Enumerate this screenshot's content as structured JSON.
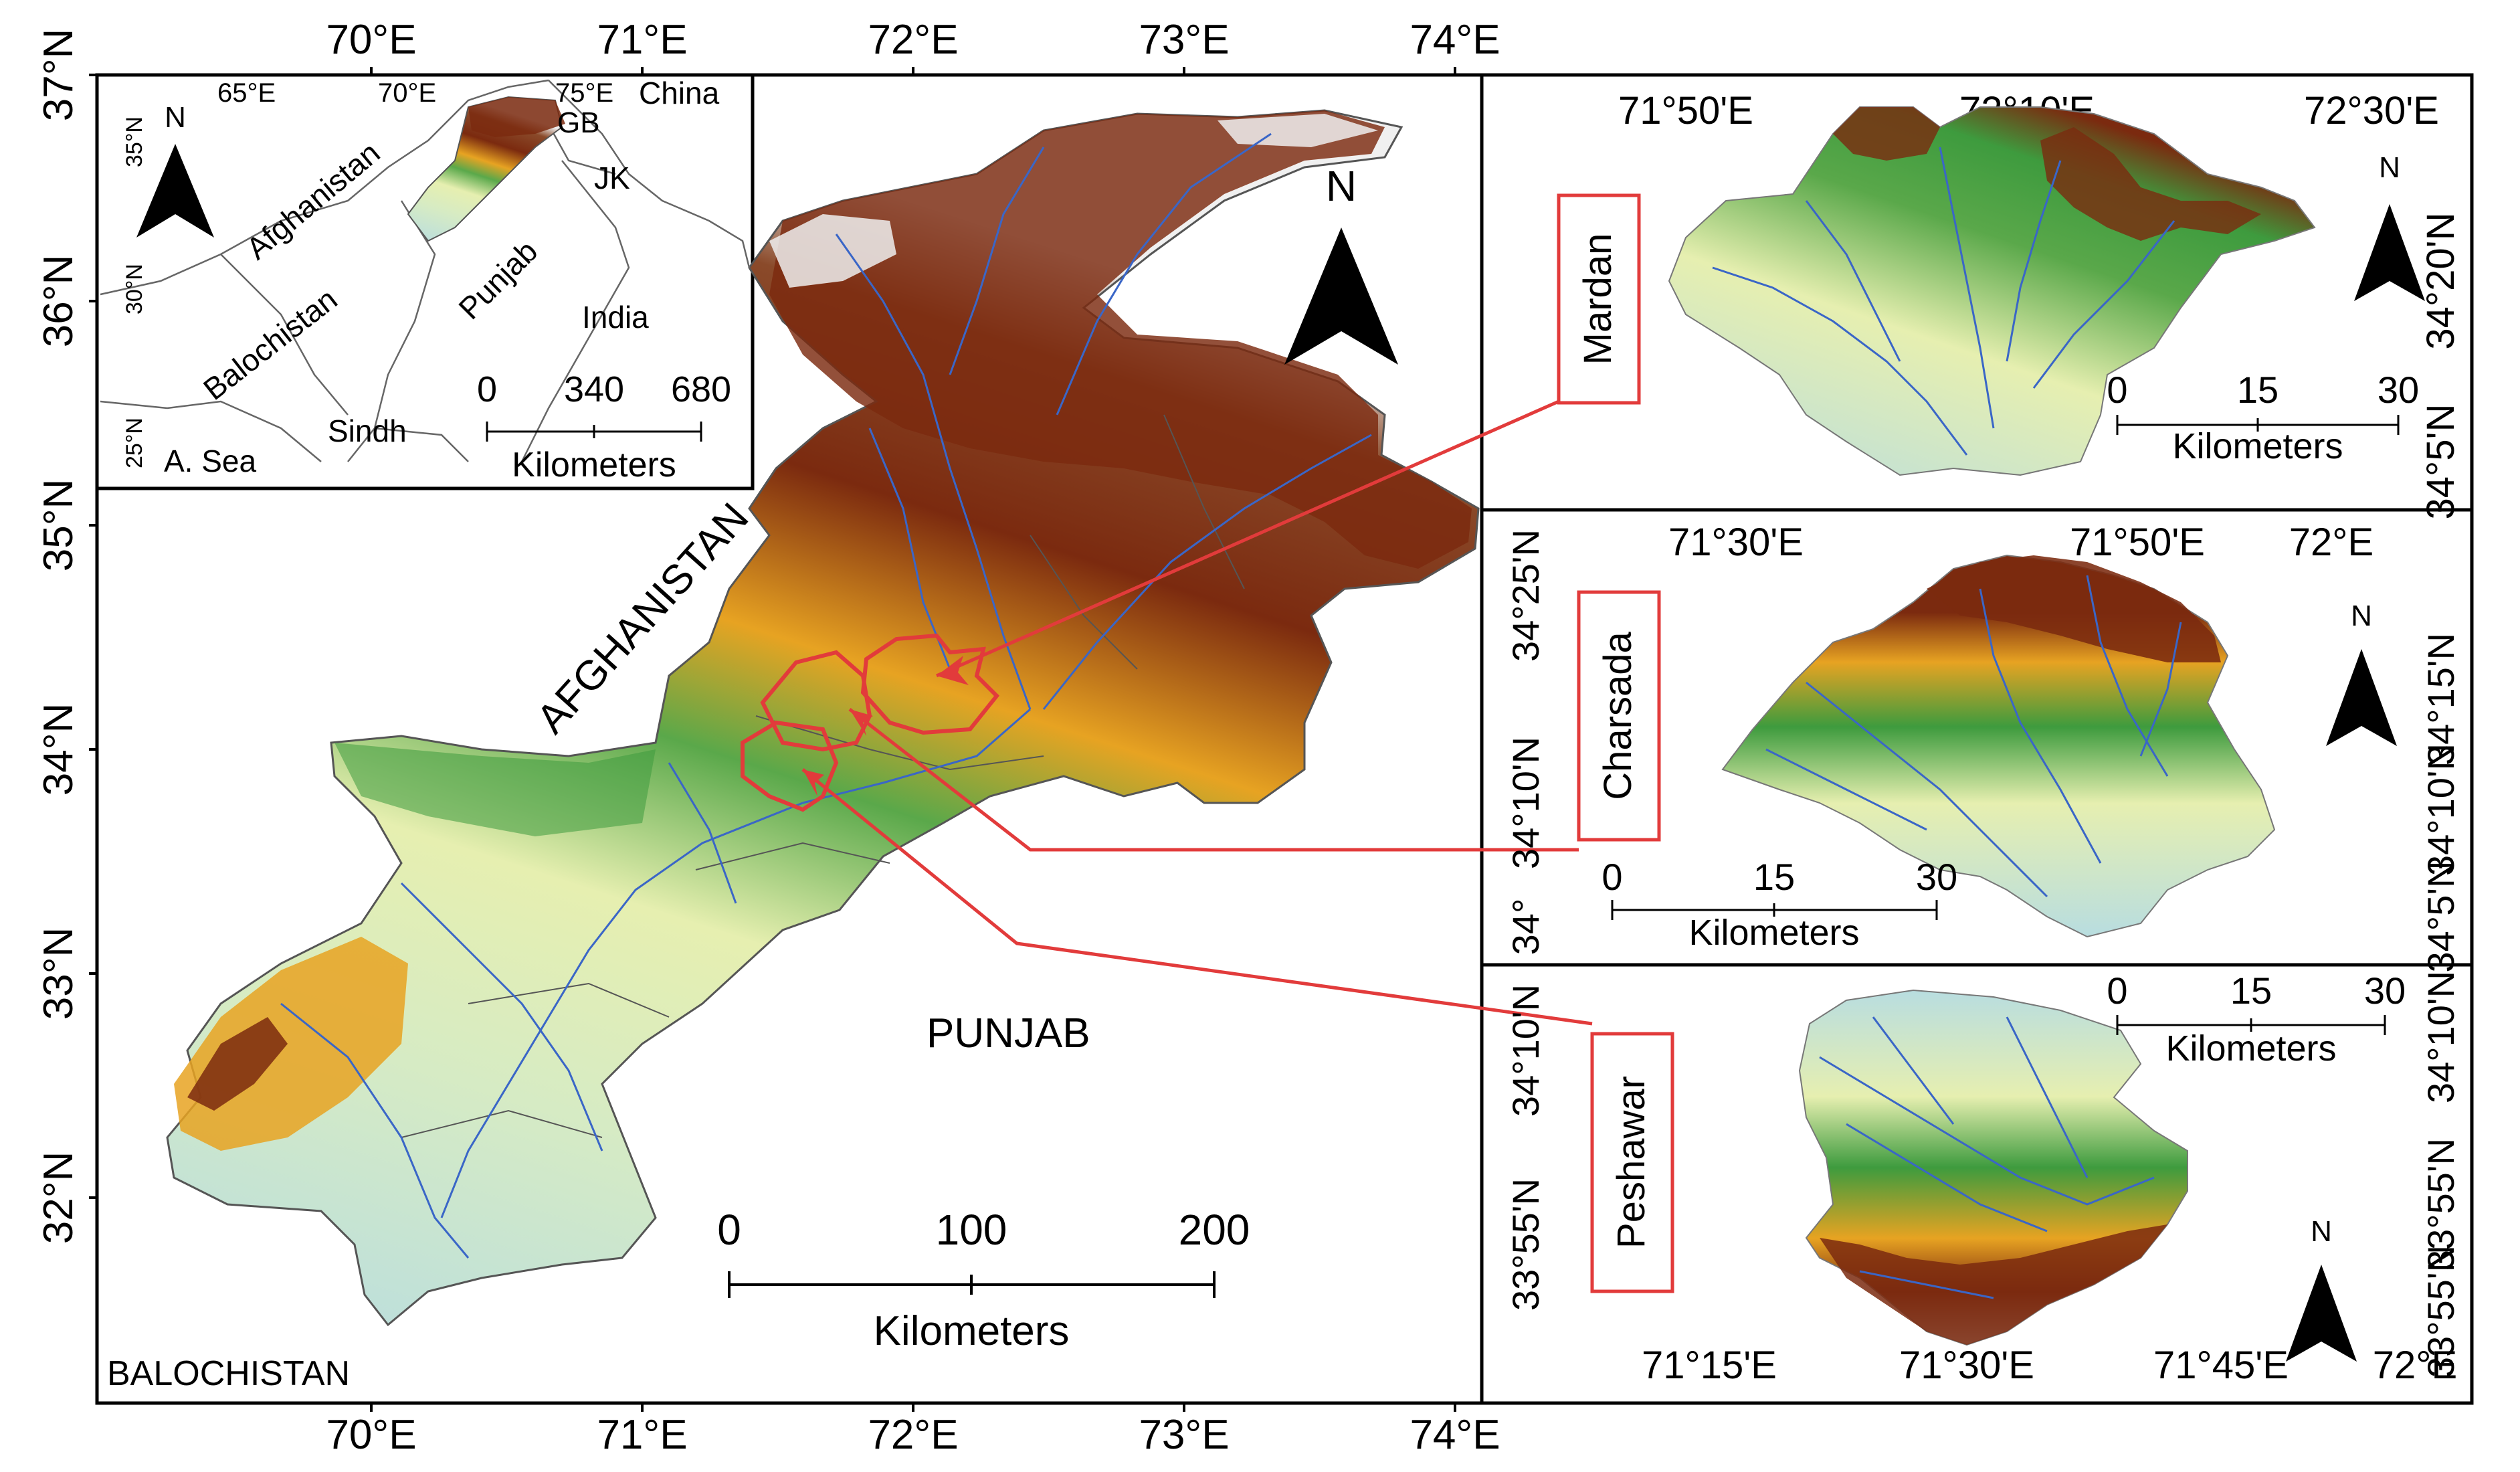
{
  "main_map": {
    "lon_labels": [
      "70°E",
      "71°E",
      "72°E",
      "73°E",
      "74°E"
    ],
    "lat_labels": [
      "37°N",
      "36°N",
      "35°N",
      "34°N",
      "33°N",
      "32°N"
    ],
    "north_label": "N",
    "region_labels": {
      "afghanistan": "AFGHANISTAN",
      "punjab": "PUNJAB",
      "balochistan": "BALOCHISTAN"
    },
    "scale": {
      "ticks": [
        "0",
        "100",
        "200"
      ],
      "unit": "Kilometers"
    }
  },
  "inset": {
    "lon_labels": [
      "65°E",
      "70°E",
      "75°E"
    ],
    "lat_labels": [
      "35°N",
      "30°N",
      "25°N"
    ],
    "north_label": "N",
    "labels": {
      "china": "China",
      "gb": "GB",
      "afghanistan": "Afghanistan",
      "jk": "JK",
      "balochistan": "Balochistan",
      "punjab": "Punjab",
      "india": "India",
      "sindh": "Sindh",
      "sea": "A. Sea"
    },
    "scale": {
      "ticks": [
        "0",
        "340",
        "680"
      ],
      "unit": "Kilometers"
    }
  },
  "panels": {
    "mardan": {
      "name": "Mardan",
      "lon_labels": [
        "71°50'E",
        "72°10'E",
        "72°30'E"
      ],
      "lat_labels": [
        "34°20'N",
        "34°5'N"
      ],
      "north_label": "N",
      "scale": {
        "ticks": [
          "0",
          "15",
          "30"
        ],
        "unit": "Kilometers"
      }
    },
    "charsada": {
      "name": "Charsada",
      "lon_labels": [
        "71°30'E",
        "71°50'E",
        "72°E"
      ],
      "lat_labels_left": [
        "34°25'N",
        "34°10'N",
        "34°"
      ],
      "lat_labels_right": [
        "34°15'N",
        "34°10'N",
        "34°5'N"
      ],
      "north_label": "N",
      "scale": {
        "ticks": [
          "0",
          "15",
          "30"
        ],
        "unit": "Kilometers"
      }
    },
    "peshawar": {
      "name": "Peshawar",
      "lon_labels": [
        "71°15'E",
        "71°30'E",
        "71°45'E",
        "72°E"
      ],
      "lat_labels_left": [
        "34°10'N",
        "33°55'N"
      ],
      "lat_labels_right": [
        "34°10'N",
        "33°55'N",
        "33°55'N"
      ],
      "north_label": "N",
      "scale": {
        "ticks": [
          "0",
          "15",
          "30"
        ],
        "unit": "Kilometers"
      }
    }
  },
  "colors": {
    "low": "#b8dde0",
    "low_mid": "#e6efb0",
    "mid": "#3e9b3e",
    "high_mid": "#e7a322",
    "high": "#7b2a0f",
    "peak": "#f2f2f2",
    "river": "#3a66c7",
    "highlight": "#e23b3b"
  }
}
